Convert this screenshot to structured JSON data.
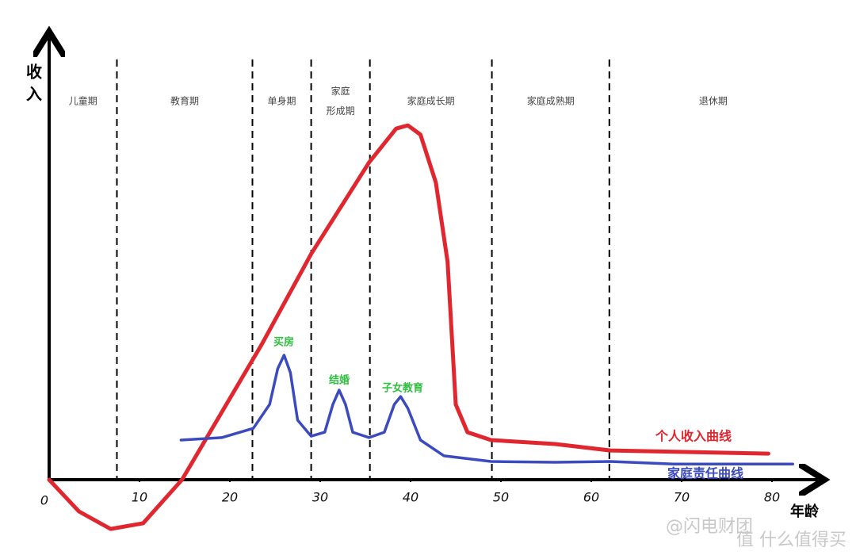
{
  "chart_data": {
    "type": "line",
    "y_label": "收入",
    "x_label": "年龄",
    "xlim": [
      0,
      85
    ],
    "ylim": [
      -15,
      120
    ],
    "xticks": [
      0,
      10,
      20,
      30,
      40,
      50,
      60,
      70,
      80
    ],
    "stage_boundaries": [
      7.5,
      22.5,
      29,
      35.5,
      49,
      62
    ],
    "stages": [
      {
        "lines": [
          "儿童期"
        ]
      },
      {
        "lines": [
          "教育期"
        ]
      },
      {
        "lines": [
          "单身期"
        ]
      },
      {
        "lines": [
          "家庭",
          "形成期"
        ]
      },
      {
        "lines": [
          "家庭成长期"
        ]
      },
      {
        "lines": [
          "家庭成熟期"
        ]
      },
      {
        "lines": [
          "退休期"
        ]
      }
    ],
    "series": [
      {
        "name": "个人收入曲线",
        "color": "#e0262f",
        "x": [
          0,
          3.3,
          6.8,
          10.4,
          14.7,
          19.1,
          23.5,
          29.0,
          35.4,
          38.4,
          39.7,
          41.1,
          42.8,
          44.1,
          44.7,
          45.0,
          46.3,
          48.9,
          56.0,
          62.1,
          79.6
        ],
        "values": [
          0,
          -8.9,
          -13.8,
          -12.2,
          0,
          18.9,
          37.8,
          63.3,
          88.9,
          98.4,
          99.3,
          96.7,
          83.3,
          61.1,
          34.4,
          21.1,
          13.3,
          11.1,
          10,
          8.2,
          7.3
        ]
      },
      {
        "name": "家庭责任曲线",
        "color": "#3b4bbf",
        "x": [
          14.6,
          19.1,
          22.6,
          24.4,
          25.3,
          26.0,
          26.7,
          27.5,
          29.0,
          30.5,
          31.4,
          32.1,
          32.8,
          33.6,
          35.4,
          37.1,
          38.2,
          38.9,
          39.7,
          41.1,
          43.7,
          48.9,
          56.0,
          62.1,
          69.1,
          82.3
        ],
        "values": [
          11.1,
          11.8,
          14.4,
          21.1,
          31.1,
          34.9,
          30,
          16.7,
          12.2,
          13.3,
          21.1,
          25.1,
          21.1,
          13.3,
          11.8,
          13.3,
          21.1,
          23.3,
          20,
          11.1,
          6.7,
          5.1,
          4.9,
          5.1,
          4.4,
          4.4
        ]
      }
    ],
    "annotations": [
      "买房",
      "结婚",
      "子女教育"
    ],
    "watermarks": [
      "@闪电财团",
      "值 什么值得买"
    ]
  }
}
